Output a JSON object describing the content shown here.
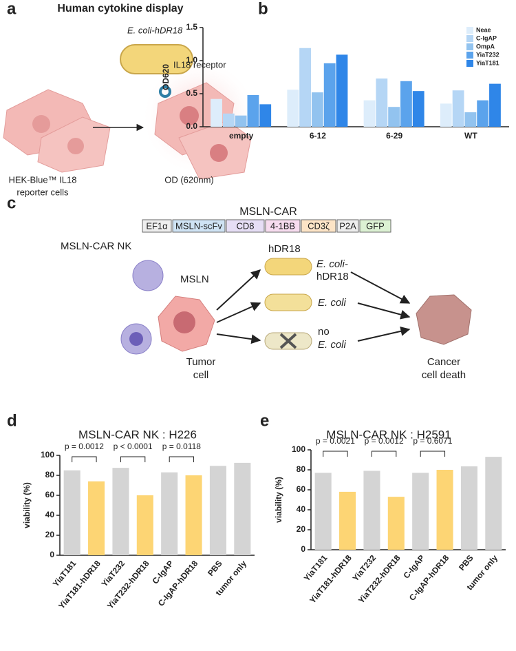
{
  "panel_a": {
    "label": "a",
    "title": "Human cytokine display",
    "bacterium": "E. coli-hDR18",
    "receptor": "IL18 receptor",
    "cells": [
      "HEK-Blue™ IL18",
      "reporter cells"
    ],
    "readout": "OD (620nm)"
  },
  "panel_c": {
    "label": "c",
    "construct_title": "MSLN-CAR",
    "construct": [
      "EF1α",
      "MSLN-scFv",
      "CD8",
      "4-1BB",
      "CD3ζ",
      "P2A",
      "GFP"
    ],
    "nk": "MSLN-CAR NK",
    "antigen": "MSLN",
    "tumor": [
      "Tumor",
      "cell"
    ],
    "hdr18": "hDR18",
    "ecoli_hdr18": [
      "E. coli-",
      "hDR18"
    ],
    "ecoli": "E. coli",
    "no_ecoli": [
      "no",
      "E. coli"
    ],
    "death": [
      "Cancer",
      "cell death"
    ]
  },
  "chart_data": [
    {
      "type": "bar",
      "panel": "b",
      "ylabel": "OD620",
      "categories": [
        "empty",
        "6-12",
        "6-29",
        "WT"
      ],
      "series": [
        {
          "name": "Neae",
          "color": "#ddedfb",
          "values": [
            0.42,
            0.56,
            0.4,
            0.35
          ]
        },
        {
          "name": "C-IgAP",
          "color": "#b5d6f5",
          "values": [
            0.2,
            1.19,
            0.73,
            0.55
          ]
        },
        {
          "name": "OmpA",
          "color": "#92c3ef",
          "values": [
            0.17,
            0.52,
            0.3,
            0.22
          ]
        },
        {
          "name": "YiaT232",
          "color": "#5ba3ec",
          "values": [
            0.48,
            0.96,
            0.69,
            0.4
          ]
        },
        {
          "name": "YiaT181",
          "color": "#2f86e8",
          "values": [
            0.34,
            1.09,
            0.54,
            0.65
          ]
        }
      ],
      "ylim": [
        0,
        1.5
      ],
      "yticks": [
        {
          "value": 0,
          "label": "0.0"
        },
        {
          "value": 0.5,
          "label": "0.5"
        },
        {
          "value": 1,
          "label": "1.0"
        },
        {
          "value": 1.5,
          "label": "1.5"
        }
      ],
      "legend": "upper right"
    },
    {
      "type": "bar",
      "panel": "d",
      "title": "MSLN-CAR NK : H226",
      "ylabel": "viability (%)",
      "categories": [
        "YiaT181",
        "YiaT181-hDR18",
        "YiaT232",
        "YiaT232-hDR18",
        "C-IgAP",
        "C-IgAP-hDR18",
        "PBS",
        "tumor only"
      ],
      "values": [
        85,
        74,
        87.5,
        60,
        83,
        80,
        89.5,
        92.5
      ],
      "colors": [
        "#d4d4d4",
        "#fdd574",
        "#d4d4d4",
        "#fdd574",
        "#d4d4d4",
        "#fdd574",
        "#d4d4d4",
        "#d4d4d4"
      ],
      "ylim": [
        0,
        100
      ],
      "yticks": [
        0,
        20,
        40,
        60,
        80,
        100
      ],
      "annotations": [
        "p = 0.0012",
        "p < 0.0001",
        "p = 0.0118"
      ]
    },
    {
      "type": "bar",
      "panel": "e",
      "title": "MSLN-CAR NK : H2591",
      "ylabel": "viability (%)",
      "categories": [
        "YiaT181",
        "YiaT181-hDR18",
        "YiaT232",
        "YiaT232-hDR18",
        "C-IgAP",
        "C-IgAP-hDR18",
        "PBS",
        "tumor only"
      ],
      "values": [
        77,
        58,
        79,
        53,
        77,
        80,
        83.5,
        93
      ],
      "colors": [
        "#d4d4d4",
        "#fdd574",
        "#d4d4d4",
        "#fdd574",
        "#d4d4d4",
        "#fdd574",
        "#d4d4d4",
        "#d4d4d4"
      ],
      "ylim": [
        0,
        100
      ],
      "yticks": [
        0,
        20,
        40,
        60,
        80,
        100
      ],
      "annotations": [
        "p = 0.0021",
        "p = 0.0012",
        "p = 0.6071"
      ]
    }
  ]
}
